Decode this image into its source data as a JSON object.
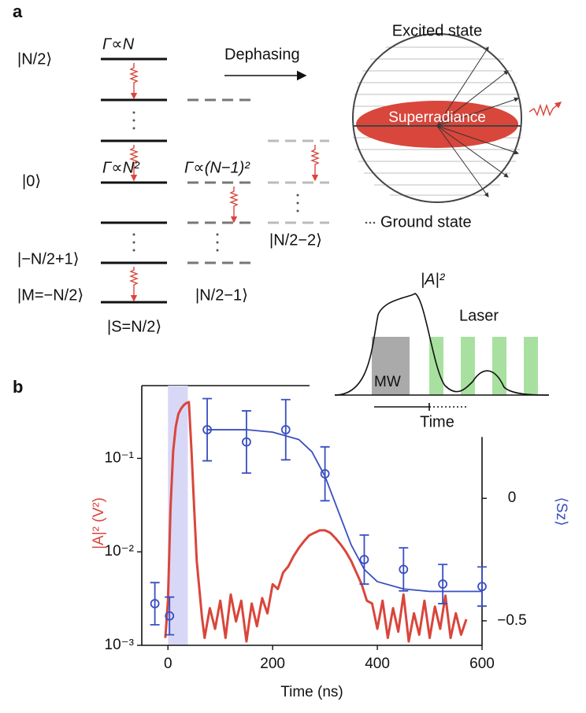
{
  "diagram": {
    "panel_a_label": "a",
    "panel_b_label": "b",
    "top_state": "|N/2⟩",
    "zero_state": "|0⟩",
    "low_state": "|−N/2+1⟩",
    "bottom_state": "|M=−N/2⟩",
    "spin_label": "|S=N/2⟩",
    "ladder2_bottom": "|N/2−1⟩",
    "ladder3_bottom": "|N/2−2⟩",
    "rate_top": "Γ∝N",
    "rate_middle": "Γ∝N²",
    "rate_ladder2": "Γ∝(N−1)²",
    "dephasing": "Dephasing",
    "excited_state": "Excited state",
    "superradiance": "Superradiance",
    "ground_state": "Ground state",
    "inset_signal": "|A|²",
    "inset_laser": "Laser",
    "inset_mw": "MW",
    "inset_time": "Time"
  },
  "chart_data": {
    "type": "line",
    "xlabel": "Time (ns)",
    "ylabel": "|A|² (V²)",
    "y2label": "⟨Sz⟩",
    "xlim": [
      -50,
      600
    ],
    "xticks": [
      0,
      200,
      400,
      600
    ],
    "log_y": true,
    "ylim": [
      0.001,
      0.6
    ],
    "yticks": [
      {
        "value": 0.001,
        "label": "10⁻³"
      },
      {
        "value": 0.01,
        "label": "10⁻²"
      },
      {
        "value": 0.1,
        "label": "10⁻¹"
      }
    ],
    "y2lim": [
      -0.6,
      0.46
    ],
    "y2ticks": [
      {
        "value": -0.5,
        "label": "−0.5"
      },
      0
    ],
    "shaded_x": [
      0,
      38
    ],
    "shade_color": "#d8d8f6",
    "series": [
      {
        "color": "#d9463b",
        "mode": "line",
        "x": [
          -5,
          0,
          5,
          10,
          15,
          20,
          25,
          30,
          35,
          40,
          45,
          50,
          55,
          60,
          65,
          70,
          80,
          90,
          100,
          110,
          120,
          130,
          140,
          150,
          160,
          170,
          180,
          190,
          200,
          210,
          220,
          230,
          240,
          250,
          260,
          270,
          280,
          290,
          300,
          310,
          320,
          330,
          340,
          350,
          360,
          370,
          380,
          390,
          400,
          410,
          420,
          430,
          440,
          450,
          460,
          470,
          480,
          490,
          500,
          510,
          520,
          530,
          540,
          550,
          560,
          570
        ],
        "values": [
          0.0012,
          0.003,
          0.03,
          0.12,
          0.22,
          0.3,
          0.34,
          0.37,
          0.39,
          0.4,
          0.12,
          0.03,
          0.008,
          0.004,
          0.002,
          0.0012,
          0.0025,
          0.0015,
          0.003,
          0.0012,
          0.0035,
          0.0018,
          0.003,
          0.0011,
          0.0028,
          0.0016,
          0.0032,
          0.0022,
          0.0045,
          0.004,
          0.006,
          0.007,
          0.009,
          0.011,
          0.013,
          0.015,
          0.016,
          0.017,
          0.017,
          0.016,
          0.014,
          0.012,
          0.01,
          0.008,
          0.006,
          0.0045,
          0.003,
          0.0028,
          0.0015,
          0.003,
          0.0012,
          0.0025,
          0.0014,
          0.0035,
          0.0011,
          0.0022,
          0.0013,
          0.003,
          0.0012,
          0.0026,
          0.0015,
          0.0034,
          0.0012,
          0.0022,
          0.0013,
          0.0019
        ]
      },
      {
        "color": "#3a4fc0",
        "mode": "markers",
        "axis": "y2",
        "x": [
          -25,
          3,
          75,
          150,
          225,
          300,
          375,
          450,
          525,
          600
        ],
        "values": [
          -0.43,
          -0.48,
          0.28,
          0.23,
          0.28,
          0.1,
          -0.25,
          -0.29,
          -0.35,
          -0.36
        ],
        "errors": [
          0.086,
          0.077,
          0.127,
          0.127,
          0.123,
          0.11,
          0.1,
          0.088,
          0.08,
          0.08
        ]
      },
      {
        "color": "#3a4fc0",
        "mode": "line",
        "axis": "y2",
        "x": [
          75,
          150,
          200,
          250,
          275,
          300,
          325,
          350,
          375,
          400,
          450,
          500,
          600
        ],
        "values": [
          0.28,
          0.28,
          0.27,
          0.24,
          0.19,
          0.09,
          -0.05,
          -0.19,
          -0.29,
          -0.34,
          -0.37,
          -0.38,
          -0.38
        ]
      }
    ]
  }
}
